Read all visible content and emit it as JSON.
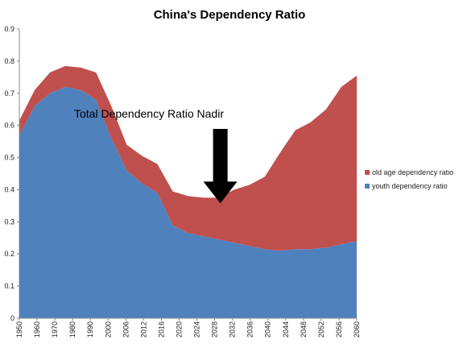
{
  "chart_data": {
    "type": "area",
    "stacked": true,
    "title": "China's Dependency Ratio",
    "xlabel": "",
    "ylabel": "",
    "ylim": [
      0,
      0.9
    ],
    "yticks": [
      "0",
      "0.1",
      "0.2",
      "0.3",
      "0.4",
      "0.5",
      "0.6",
      "0.7",
      "0.8",
      "0.9"
    ],
    "x": [
      "1950",
      "1955",
      "1960",
      "1965",
      "1970",
      "1975",
      "1980",
      "1985",
      "1990",
      "1995",
      "2000",
      "2005",
      "2010",
      "2015",
      "2020",
      "2025",
      "2030",
      "2035",
      "2040",
      "2045",
      "2050",
      "2055",
      "2060"
    ],
    "xticks": [
      "1950",
      "1960",
      "1970",
      "1980",
      "1990",
      "2000",
      "2006",
      "2012",
      "2016",
      "2020",
      "2024",
      "2028",
      "2032",
      "2036",
      "2040",
      "2044",
      "2048",
      "2052",
      "2056",
      "2060"
    ],
    "series": [
      {
        "name": "youth dependency ratio",
        "color": "#4f81bd",
        "values": [
          0.57,
          0.66,
          0.7,
          0.72,
          0.71,
          0.68,
          0.56,
          0.46,
          0.42,
          0.39,
          0.29,
          0.265,
          0.255,
          0.245,
          0.235,
          0.225,
          0.215,
          0.21,
          0.215,
          0.215,
          0.22,
          0.23,
          0.24
        ]
      },
      {
        "name": "old age dependency ratio",
        "color": "#c0504d",
        "values": [
          0.045,
          0.05,
          0.065,
          0.065,
          0.07,
          0.085,
          0.1,
          0.08,
          0.085,
          0.09,
          0.105,
          0.115,
          0.12,
          0.13,
          0.165,
          0.19,
          0.225,
          0.305,
          0.37,
          0.395,
          0.43,
          0.49,
          0.515
        ]
      }
    ],
    "legend": {
      "position": "right",
      "entries": [
        "old age dependency ratio",
        "youth dependency ratio"
      ]
    },
    "annotations": [
      {
        "text": "Total Dependency Ratio Nadir",
        "arrow_at_x": "2015",
        "arrow_to_y": 0.375
      }
    ],
    "grid": false
  }
}
